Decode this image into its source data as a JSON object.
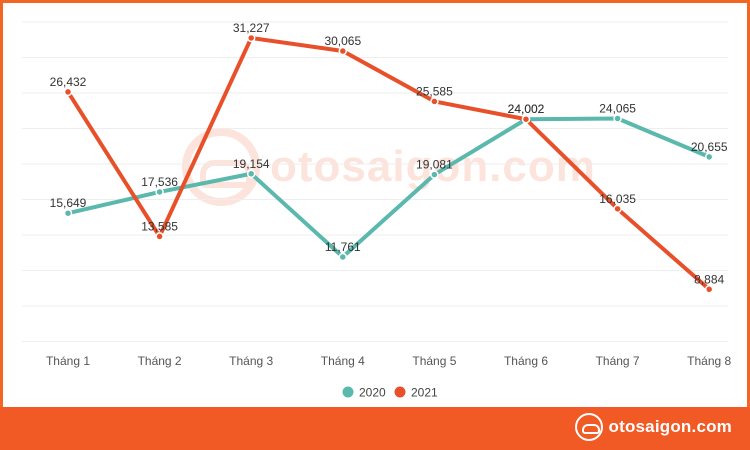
{
  "brand": {
    "name": "otosaigon.com",
    "accent_color": "#f15a24",
    "logo_icon": "otosaigon-car-logo"
  },
  "chart_data": {
    "type": "line",
    "categories": [
      "Tháng 1",
      "Tháng 2",
      "Tháng 3",
      "Tháng 4",
      "Tháng 5",
      "Tháng 6",
      "Tháng 7",
      "Tháng 8"
    ],
    "ylim": [
      5000,
      33000
    ],
    "grid": "horizontal",
    "legend_position": "bottom-center",
    "series": [
      {
        "name": "2020",
        "color": "#5bb8ad",
        "values": [
          15649,
          17536,
          19154,
          11761,
          19081,
          24002,
          24065,
          20655
        ],
        "labels": [
          "15,649",
          "17,536",
          "19,154",
          "11,761",
          "19,081",
          "24,002",
          "24,065",
          "20,655"
        ]
      },
      {
        "name": "2021",
        "color": "#e8502a",
        "values": [
          26432,
          13585,
          31227,
          30065,
          25585,
          24002,
          16035,
          8884
        ],
        "labels": [
          "26,432",
          "13,585",
          "31,227",
          "30,065",
          "25,585",
          "24,002",
          "16,035",
          "8,884"
        ]
      }
    ]
  }
}
